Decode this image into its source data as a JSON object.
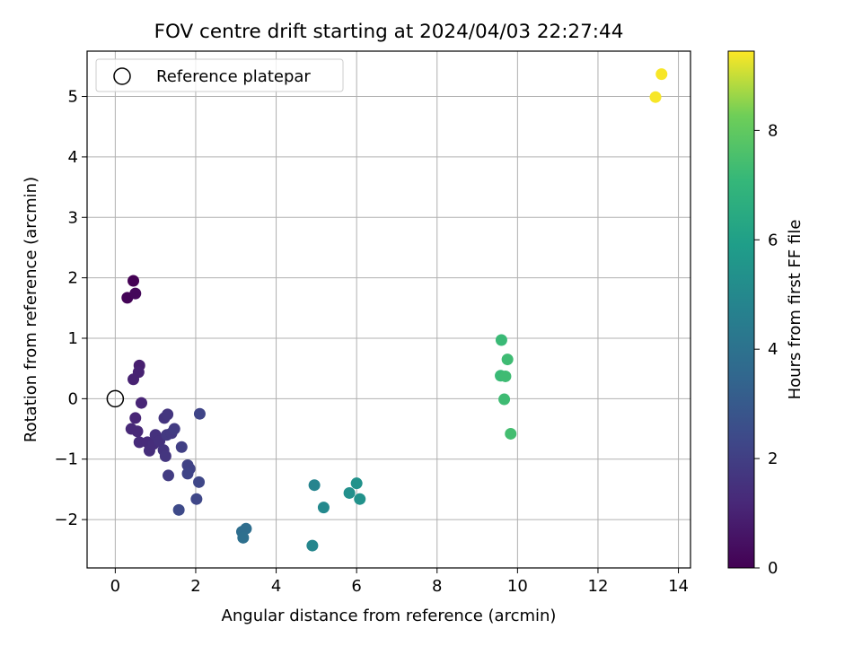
{
  "chart_data": {
    "type": "scatter",
    "title": "FOV centre drift starting at 2024/04/03 22:27:44",
    "xlabel": "Angular distance from reference (arcmin)",
    "ylabel": "Rotation from reference (arcmin)",
    "xlim": [
      -0.7,
      14.3
    ],
    "ylim": [
      -2.8,
      5.75
    ],
    "xticks": [
      0,
      2,
      4,
      6,
      8,
      10,
      12,
      14
    ],
    "yticks": [
      -2,
      -1,
      0,
      1,
      2,
      3,
      4,
      5
    ],
    "grid": true,
    "legend": {
      "position": "top-left",
      "entries": [
        "Reference platepar"
      ]
    },
    "reference_point": {
      "x": 0,
      "y": 0
    },
    "colorbar": {
      "label": "Hours from first FF file",
      "range": [
        0,
        9.45
      ],
      "ticks": [
        0,
        2,
        4,
        6,
        8
      ],
      "colormap": "viridis"
    },
    "points": [
      {
        "x": 0.45,
        "y": 1.95,
        "hours": 0.0
      },
      {
        "x": 0.3,
        "y": 1.67,
        "hours": 0.1
      },
      {
        "x": 0.5,
        "y": 1.74,
        "hours": 0.2
      },
      {
        "x": 0.6,
        "y": 0.55,
        "hours": 0.9
      },
      {
        "x": 0.58,
        "y": 0.44,
        "hours": 1.0
      },
      {
        "x": 0.45,
        "y": 0.32,
        "hours": 1.0
      },
      {
        "x": 0.65,
        "y": -0.07,
        "hours": 1.1
      },
      {
        "x": 0.5,
        "y": -0.32,
        "hours": 1.1
      },
      {
        "x": 0.4,
        "y": -0.5,
        "hours": 1.2
      },
      {
        "x": 0.55,
        "y": -0.54,
        "hours": 1.2
      },
      {
        "x": 0.6,
        "y": -0.72,
        "hours": 1.3
      },
      {
        "x": 0.8,
        "y": -0.72,
        "hours": 1.3
      },
      {
        "x": 0.85,
        "y": -0.86,
        "hours": 1.4
      },
      {
        "x": 0.95,
        "y": -0.75,
        "hours": 1.4
      },
      {
        "x": 1.0,
        "y": -0.6,
        "hours": 1.5
      },
      {
        "x": 1.1,
        "y": -0.7,
        "hours": 1.5
      },
      {
        "x": 1.2,
        "y": -0.85,
        "hours": 1.6
      },
      {
        "x": 1.22,
        "y": -0.32,
        "hours": 1.6
      },
      {
        "x": 1.3,
        "y": -0.26,
        "hours": 1.7
      },
      {
        "x": 1.25,
        "y": -0.95,
        "hours": 1.7
      },
      {
        "x": 1.28,
        "y": -0.6,
        "hours": 1.8
      },
      {
        "x": 1.4,
        "y": -0.57,
        "hours": 1.8
      },
      {
        "x": 1.47,
        "y": -0.5,
        "hours": 1.9
      },
      {
        "x": 1.32,
        "y": -1.27,
        "hours": 1.9
      },
      {
        "x": 1.65,
        "y": -0.8,
        "hours": 2.0
      },
      {
        "x": 1.8,
        "y": -1.1,
        "hours": 2.1
      },
      {
        "x": 1.85,
        "y": -1.16,
        "hours": 2.1
      },
      {
        "x": 1.8,
        "y": -1.24,
        "hours": 2.2
      },
      {
        "x": 2.1,
        "y": -0.25,
        "hours": 2.2
      },
      {
        "x": 2.08,
        "y": -1.38,
        "hours": 2.3
      },
      {
        "x": 2.02,
        "y": -1.66,
        "hours": 2.3
      },
      {
        "x": 1.58,
        "y": -1.84,
        "hours": 2.4
      },
      {
        "x": 3.15,
        "y": -2.2,
        "hours": 3.8
      },
      {
        "x": 3.25,
        "y": -2.15,
        "hours": 3.8
      },
      {
        "x": 3.18,
        "y": -2.3,
        "hours": 3.9
      },
      {
        "x": 4.95,
        "y": -1.43,
        "hours": 4.8
      },
      {
        "x": 4.9,
        "y": -2.43,
        "hours": 4.9
      },
      {
        "x": 5.18,
        "y": -1.8,
        "hours": 5.0
      },
      {
        "x": 5.82,
        "y": -1.56,
        "hours": 5.3
      },
      {
        "x": 6.0,
        "y": -1.4,
        "hours": 5.4
      },
      {
        "x": 6.08,
        "y": -1.66,
        "hours": 5.4
      },
      {
        "x": 9.6,
        "y": 0.97,
        "hours": 7.2
      },
      {
        "x": 9.58,
        "y": 0.38,
        "hours": 7.2
      },
      {
        "x": 9.7,
        "y": 0.37,
        "hours": 7.3
      },
      {
        "x": 9.75,
        "y": 0.65,
        "hours": 7.3
      },
      {
        "x": 9.67,
        "y": -0.01,
        "hours": 7.3
      },
      {
        "x": 9.83,
        "y": -0.58,
        "hours": 7.4
      },
      {
        "x": 13.58,
        "y": 5.37,
        "hours": 9.4
      },
      {
        "x": 13.43,
        "y": 4.99,
        "hours": 9.4
      }
    ]
  }
}
